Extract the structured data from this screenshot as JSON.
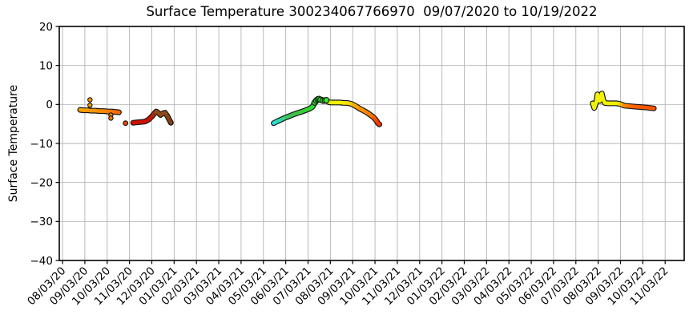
{
  "window": {
    "background": "#ffffff"
  },
  "chart_data": {
    "type": "scatter",
    "title": "Surface Temperature 300234067766970  09/07/2020 to 10/19/2022",
    "xlabel": "",
    "ylabel": "Surface Temperature",
    "ylim": [
      -40,
      20
    ],
    "y_ticks": [
      20,
      10,
      0,
      -10,
      -20,
      -30,
      -40
    ],
    "y_tick_labels": [
      "20",
      "10",
      "0",
      "−10",
      "−20",
      "−30",
      "−40"
    ],
    "x_range": [
      "07/29/20",
      "11/29/22"
    ],
    "x_tick_labels": [
      "08/03/20",
      "09/03/20",
      "10/03/20",
      "11/03/20",
      "12/03/20",
      "01/03/21",
      "02/03/21",
      "03/03/21",
      "04/03/21",
      "05/03/21",
      "06/03/21",
      "07/03/21",
      "08/03/21",
      "09/03/21",
      "10/03/21",
      "11/03/21",
      "12/03/21",
      "01/03/22",
      "02/03/22",
      "03/03/22",
      "04/03/22",
      "05/03/22",
      "06/03/22",
      "07/03/22",
      "08/03/22",
      "09/03/22",
      "10/03/22",
      "11/03/22"
    ],
    "x_tick_rotation": 45,
    "grid": true,
    "grid_color": "#b3b3b3",
    "axis_color": "#000000",
    "text_color": "#000000",
    "marker_edge_color": "#141414",
    "series": [
      {
        "name": "autumn-2020-line",
        "style": "line",
        "width": 4.6,
        "points": [
          [
            "08/27/20",
            -1.4,
            "#ffa200"
          ],
          [
            "09/01/20",
            -1.5,
            "#ff9e00"
          ],
          [
            "09/07/20",
            -1.5,
            "#ff9a00"
          ],
          [
            "09/12/20",
            -1.6,
            "#ff9600"
          ],
          [
            "09/18/20",
            -1.6,
            "#ff9200"
          ],
          [
            "09/23/20",
            -1.7,
            "#ff8c00"
          ],
          [
            "09/29/20",
            -1.7,
            "#ff8600"
          ],
          [
            "10/04/20",
            -1.8,
            "#ff7e00"
          ],
          [
            "10/09/20",
            -1.8,
            "#ff7600"
          ],
          [
            "10/14/20",
            -1.9,
            "#ff6c00"
          ],
          [
            "10/19/20",
            -2.0,
            "#fa6000"
          ]
        ]
      },
      {
        "name": "sep-2020-outlier-dots",
        "style": "dots",
        "r": 2.7,
        "points": [
          [
            "09/10/20",
            1.2,
            "#ff9600"
          ],
          [
            "09/10/20",
            -0.2,
            "#ff9600"
          ]
        ]
      },
      {
        "name": "oct-2020-drip-dots",
        "style": "dots",
        "r": 2.7,
        "points": [
          [
            "10/08/20",
            -2.7,
            "#ff8200"
          ],
          [
            "10/08/20",
            -3.5,
            "#ff7e00"
          ]
        ]
      },
      {
        "name": "oct-2020-isolated-dot",
        "style": "dots",
        "r": 2.9,
        "points": [
          [
            "10/28/20",
            -4.8,
            "#e94500"
          ]
        ]
      },
      {
        "name": "nov-dec-2020-line",
        "style": "line",
        "width": 4.6,
        "points": [
          [
            "11/08/20",
            -4.7,
            "#d21100"
          ],
          [
            "11/13/20",
            -4.6,
            "#d11000"
          ],
          [
            "11/19/20",
            -4.5,
            "#d01000"
          ],
          [
            "11/24/20",
            -4.4,
            "#cf0f00"
          ],
          [
            "11/29/20",
            -3.9,
            "#ca1000"
          ],
          [
            "12/03/20",
            -3.1,
            "#b61e05"
          ],
          [
            "12/06/20",
            -2.4,
            "#a02f0c"
          ],
          [
            "12/09/20",
            -1.8,
            "#8f4a18"
          ],
          [
            "12/12/20",
            -2.2,
            "#8e4917"
          ],
          [
            "12/15/20",
            -2.7,
            "#8a4516"
          ],
          [
            "12/18/20",
            -2.3,
            "#8e4917"
          ],
          [
            "12/21/20",
            -2.1,
            "#8f4a18"
          ],
          [
            "12/24/20",
            -2.9,
            "#884313"
          ],
          [
            "12/27/20",
            -4.0,
            "#803d11"
          ],
          [
            "12/29/20",
            -4.7,
            "#7b3a10"
          ]
        ]
      },
      {
        "name": "may-oct-2021-arc-line",
        "style": "line",
        "width": 4.6,
        "points": [
          [
            "05/17/21",
            -4.8,
            "#2bdfd8"
          ],
          [
            "05/22/21",
            -4.3,
            "#2edbb4"
          ],
          [
            "05/28/21",
            -3.8,
            "#34d28c"
          ],
          [
            "06/02/21",
            -3.4,
            "#39c969"
          ],
          [
            "06/08/21",
            -3.0,
            "#3cc153"
          ],
          [
            "06/13/21",
            -2.6,
            "#3ec047"
          ],
          [
            "06/19/21",
            -2.2,
            "#3ec63e"
          ],
          [
            "06/24/21",
            -1.9,
            "#3bcd37"
          ],
          [
            "06/30/21",
            -1.5,
            "#36d431"
          ],
          [
            "07/05/21",
            -1.1,
            "#31da2d"
          ],
          [
            "07/09/21",
            -0.6,
            "#2fdf2c"
          ],
          [
            "07/12/21",
            0.4,
            "#2ee32c"
          ],
          [
            "07/15/21",
            1.0,
            "#2ee42c"
          ],
          [
            "07/18/21",
            1.4,
            "#2ee42c"
          ],
          [
            "07/22/21",
            1.2,
            "#2ee32c"
          ],
          [
            "07/25/21",
            0.9,
            "#49e128"
          ],
          [
            "07/28/21",
            1.1,
            "#8ce71a"
          ],
          [
            "07/31/21",
            0.6,
            "#d2ee08"
          ],
          [
            "08/04/21",
            0.5,
            "#eef000"
          ],
          [
            "08/10/21",
            0.5,
            "#f1f000"
          ],
          [
            "08/16/21",
            0.5,
            "#f3ef00"
          ],
          [
            "08/21/21",
            0.4,
            "#f5ec00"
          ],
          [
            "08/26/21",
            0.4,
            "#f8dd00"
          ],
          [
            "08/31/21",
            0.2,
            "#fcc800"
          ],
          [
            "09/04/21",
            -0.1,
            "#ffb200"
          ],
          [
            "09/08/21",
            -0.5,
            "#ffa500"
          ],
          [
            "09/12/21",
            -1.0,
            "#ff9b00"
          ],
          [
            "09/16/21",
            -1.4,
            "#ff9300"
          ],
          [
            "09/19/21",
            -1.7,
            "#ff8c00"
          ],
          [
            "09/22/21",
            -2.0,
            "#ff8500"
          ],
          [
            "09/25/21",
            -2.4,
            "#ff7d00"
          ],
          [
            "09/28/21",
            -2.8,
            "#ff7300"
          ],
          [
            "10/01/21",
            -3.3,
            "#ff6100"
          ],
          [
            "10/03/21",
            -3.7,
            "#fd5200"
          ],
          [
            "10/05/21",
            -4.2,
            "#f84300"
          ],
          [
            "10/07/21",
            -4.8,
            "#f13500"
          ],
          [
            "10/09/21",
            -5.1,
            "#ed2e00"
          ]
        ]
      },
      {
        "name": "jul-2021-peak-cluster-dots",
        "style": "dots",
        "r": 3.4,
        "points": [
          [
            "07/12/21",
            0.5,
            "#2ee32c"
          ],
          [
            "07/14/21",
            1.0,
            "#2ee42c"
          ],
          [
            "07/16/21",
            1.3,
            "#2ee42c"
          ],
          [
            "07/18/21",
            1.4,
            "#2ee42c"
          ],
          [
            "07/20/21",
            1.2,
            "#2ee42c"
          ],
          [
            "07/23/21",
            1.0,
            "#2ee32c"
          ],
          [
            "07/26/21",
            1.0,
            "#33e42a"
          ],
          [
            "07/28/21",
            1.1,
            "#3fe428"
          ]
        ]
      },
      {
        "name": "aug-oct-2022-line",
        "style": "line",
        "width": 4.6,
        "points": [
          [
            "07/26/22",
            0.3,
            "#f2f200"
          ],
          [
            "07/28/22",
            -0.9,
            "#f2f200"
          ],
          [
            "07/31/22",
            0.7,
            "#f4f400"
          ],
          [
            "08/02/22",
            2.6,
            "#f4f400"
          ],
          [
            "08/05/22",
            0.9,
            "#f3f300"
          ],
          [
            "08/08/22",
            2.8,
            "#f4f400"
          ],
          [
            "08/10/22",
            1.2,
            "#f3f300"
          ],
          [
            "08/12/22",
            0.4,
            "#f2f200"
          ],
          [
            "08/16/22",
            0.3,
            "#f1f100"
          ],
          [
            "08/21/22",
            0.3,
            "#f0f000"
          ],
          [
            "08/27/22",
            0.3,
            "#f0ee00"
          ],
          [
            "09/01/22",
            0.2,
            "#f2e000"
          ],
          [
            "09/04/22",
            0.0,
            "#fdb200"
          ],
          [
            "09/08/22",
            -0.3,
            "#ff8a00"
          ],
          [
            "09/14/22",
            -0.4,
            "#ff6e00"
          ],
          [
            "09/20/22",
            -0.5,
            "#ff6200"
          ],
          [
            "09/26/22",
            -0.6,
            "#ff5d00"
          ],
          [
            "10/02/22",
            -0.7,
            "#ff5900"
          ],
          [
            "10/08/22",
            -0.8,
            "#ff5600"
          ],
          [
            "10/13/22",
            -0.9,
            "#ff5400"
          ],
          [
            "10/18/22",
            -1.0,
            "#ff5200"
          ]
        ]
      }
    ]
  }
}
